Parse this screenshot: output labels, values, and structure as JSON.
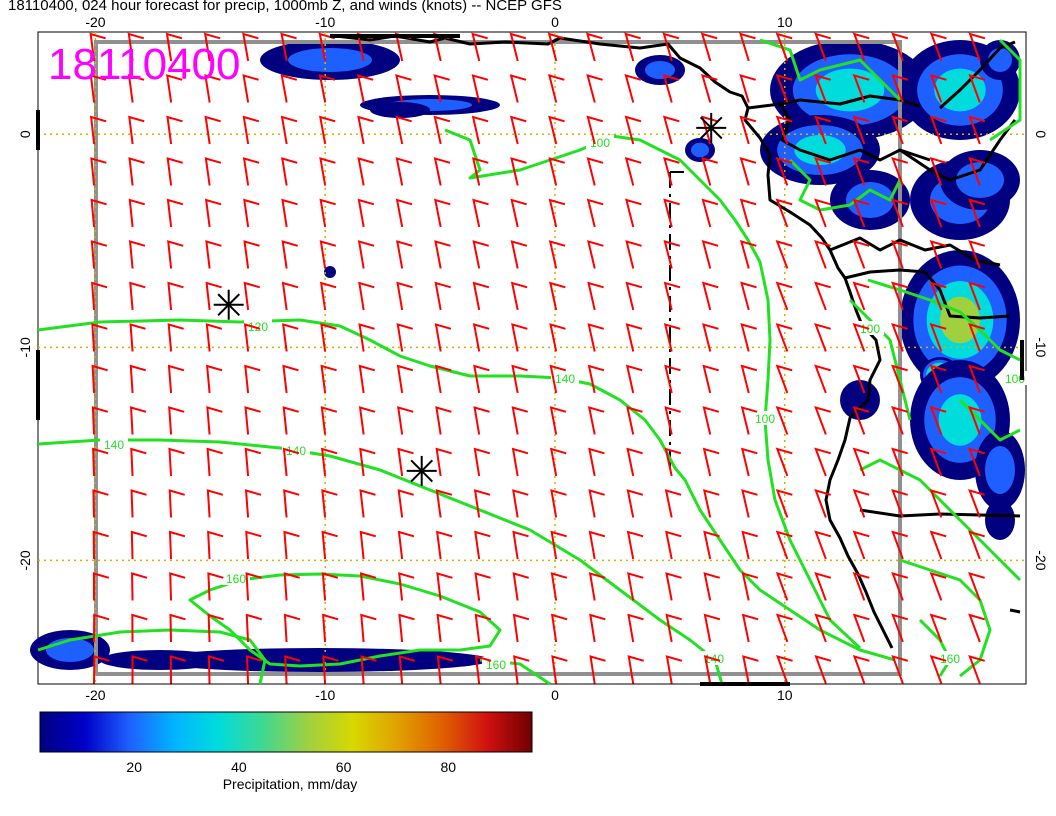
{
  "title": "18110400, 024 hour forecast for precip, 1000mb Z, and winds (knots) -- NCEP GFS",
  "stamp": "18110400",
  "axes": {
    "x_ticks": [
      "-20",
      "-10",
      "0",
      "10"
    ],
    "x_values": [
      -20,
      -10,
      0,
      10
    ],
    "y_ticks": [
      "0",
      "-10",
      "-20"
    ],
    "y_values": [
      0,
      -10,
      -20
    ],
    "lon_range": [
      -22.5,
      20.5
    ],
    "lat_range": [
      4.8,
      -25.8
    ]
  },
  "contours": {
    "color": "#22e022",
    "labels": [
      "100",
      "120",
      "140",
      "140",
      "140",
      "100",
      "140",
      "160",
      "160",
      "100",
      "160",
      "100"
    ]
  },
  "markers": {
    "symbol": "asterisk",
    "points": [
      {
        "lon": -14.2,
        "lat": -8.0
      },
      {
        "lon": -5.8,
        "lat": -15.8
      },
      {
        "lon": 6.8,
        "lat": 0.3
      }
    ]
  },
  "wind_barbs": {
    "color": "#ff0000",
    "unit": "knots"
  },
  "colorbar": {
    "label": "Precipitation, mm/day",
    "ticks": [
      "20",
      "40",
      "60",
      "80"
    ],
    "tick_values": [
      20,
      40,
      60,
      80
    ],
    "range": [
      2,
      96
    ],
    "colors": [
      "#000080",
      "#0000c8",
      "#1e60ff",
      "#00b4ff",
      "#00dcdc",
      "#40d890",
      "#a0d040",
      "#d8d800",
      "#e0a000",
      "#e06000",
      "#d01010",
      "#700000"
    ]
  }
}
